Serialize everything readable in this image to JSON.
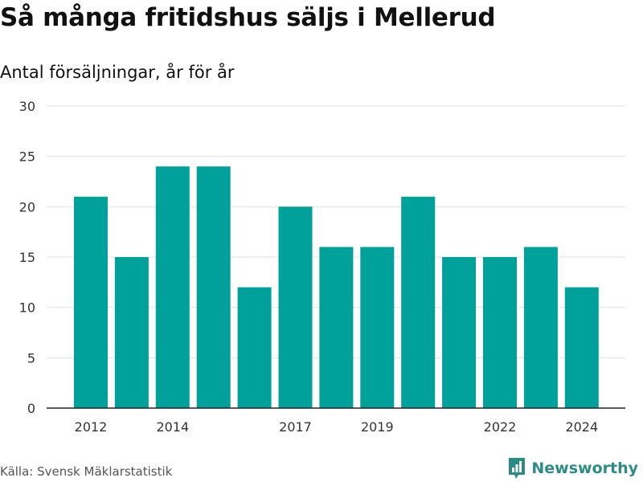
{
  "chart_data": {
    "type": "bar",
    "title": "Så många fritidshus säljs i Mellerud",
    "subtitle": "Antal försäljningar, år för år",
    "categories": [
      "2012",
      "2013",
      "2014",
      "2015",
      "2016",
      "2017",
      "2018",
      "2019",
      "2020",
      "2021",
      "2022",
      "2023",
      "2024"
    ],
    "values": [
      21,
      15,
      24,
      24,
      12,
      20,
      16,
      16,
      21,
      15,
      15,
      16,
      12
    ],
    "x_tick_labels": [
      "2012",
      "2014",
      "2017",
      "2019",
      "2022",
      "2024"
    ],
    "y_ticks": [
      0,
      5,
      10,
      15,
      20,
      25,
      30
    ],
    "ylim": [
      0,
      30
    ],
    "xlabel": "",
    "ylabel": "",
    "grid": true,
    "bar_color": "#00a19a",
    "source": "Källa: Svensk Mäklarstatistik"
  },
  "brand": {
    "name": "Newsworthy",
    "color": "#2a8c85"
  }
}
